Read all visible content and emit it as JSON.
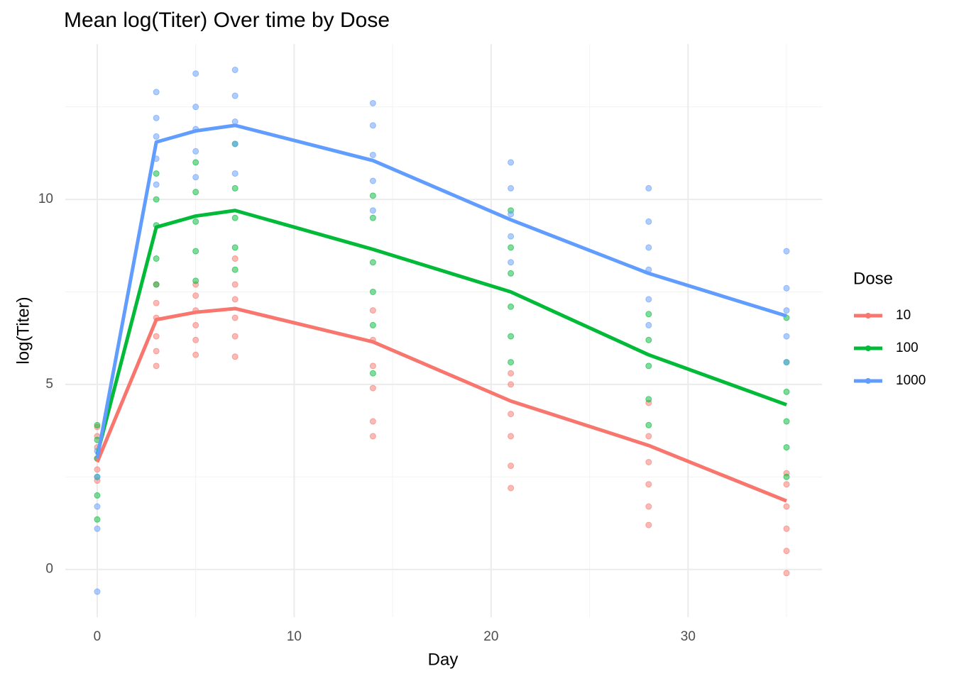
{
  "chart_data": {
    "type": "line",
    "title": "Mean log(Titer) Over time by Dose",
    "x_label": "Day",
    "y_label": "log(Titer)",
    "legend_title": "Dose",
    "legend_position": "right",
    "grid": true,
    "xlim": [
      -1.62,
      36.8
    ],
    "ylim": [
      -1.29,
      14.2
    ],
    "xticks": [
      0,
      10,
      20,
      30
    ],
    "yticks": [
      0,
      5,
      10
    ],
    "xminor": [
      5,
      15,
      25,
      35
    ],
    "yminor": [
      2.5,
      7.5,
      12.5
    ],
    "x": [
      0,
      3,
      5,
      7,
      14,
      21,
      28,
      35
    ],
    "series": [
      {
        "name": "10",
        "color": "#F8766D",
        "values": [
          2.9,
          6.75,
          6.95,
          7.05,
          6.15,
          4.55,
          3.35,
          1.85
        ],
        "points_x": [
          0,
          0,
          0,
          0,
          0,
          0,
          3,
          3,
          3,
          3,
          3,
          3,
          5,
          5,
          5,
          5,
          5,
          5,
          7,
          7,
          7,
          7,
          7,
          7,
          14,
          14,
          14,
          14,
          14,
          14,
          21,
          21,
          21,
          21,
          21,
          21,
          28,
          28,
          28,
          28,
          28,
          28,
          35,
          35,
          35,
          35,
          35,
          35
        ],
        "points_y": [
          2.4,
          2.7,
          3.0,
          3.3,
          3.6,
          3.85,
          5.5,
          5.9,
          6.3,
          6.8,
          7.2,
          7.7,
          5.8,
          6.2,
          6.6,
          7.0,
          7.4,
          7.7,
          5.75,
          6.3,
          6.8,
          7.3,
          7.7,
          8.4,
          3.6,
          4.0,
          4.9,
          5.5,
          6.2,
          7.0,
          2.2,
          2.8,
          3.6,
          4.2,
          5.0,
          5.3,
          1.2,
          1.7,
          2.3,
          2.9,
          3.6,
          4.5,
          -0.1,
          0.5,
          1.1,
          1.7,
          2.3,
          2.6
        ]
      },
      {
        "name": "100",
        "color": "#00BA38",
        "values": [
          3.1,
          9.25,
          9.55,
          9.7,
          8.65,
          7.5,
          5.8,
          4.45
        ],
        "points_x": [
          0,
          0,
          0,
          0,
          0,
          0,
          3,
          3,
          3,
          3,
          3,
          5,
          5,
          5,
          5,
          5,
          7,
          7,
          7,
          7,
          7,
          14,
          14,
          14,
          14,
          14,
          14,
          21,
          21,
          21,
          21,
          21,
          21,
          28,
          28,
          28,
          28,
          28,
          35,
          35,
          35,
          35,
          35,
          35
        ],
        "points_y": [
          1.35,
          2.0,
          2.5,
          3.0,
          3.5,
          3.9,
          7.7,
          8.4,
          9.3,
          10.0,
          10.7,
          7.8,
          8.6,
          9.4,
          10.2,
          11.0,
          8.1,
          8.7,
          9.5,
          10.3,
          11.5,
          5.3,
          6.6,
          7.5,
          8.3,
          9.5,
          10.1,
          5.6,
          6.3,
          7.1,
          8.0,
          8.7,
          9.7,
          3.9,
          4.6,
          5.5,
          6.2,
          6.9,
          2.5,
          3.3,
          4.0,
          4.8,
          5.6,
          6.8
        ]
      },
      {
        "name": "1000",
        "color": "#619CFF",
        "values": [
          3.0,
          11.55,
          11.85,
          12.0,
          11.05,
          9.45,
          8.0,
          6.85
        ],
        "points_x": [
          0,
          0,
          0,
          0,
          0,
          3,
          3,
          3,
          3,
          3,
          5,
          5,
          5,
          5,
          5,
          7,
          7,
          7,
          7,
          7,
          14,
          14,
          14,
          14,
          14,
          21,
          21,
          21,
          21,
          21,
          28,
          28,
          28,
          28,
          28,
          28,
          35,
          35,
          35,
          35,
          35
        ],
        "points_y": [
          -0.6,
          1.1,
          1.7,
          2.5,
          3.2,
          10.4,
          11.1,
          11.7,
          12.2,
          12.9,
          10.6,
          11.3,
          11.9,
          12.5,
          13.4,
          10.7,
          11.5,
          12.1,
          12.8,
          13.5,
          9.7,
          10.5,
          11.2,
          12.0,
          12.6,
          8.3,
          9.0,
          9.6,
          10.3,
          11.0,
          6.6,
          7.3,
          8.1,
          8.7,
          9.4,
          10.3,
          5.6,
          6.3,
          7.0,
          7.6,
          8.6
        ]
      }
    ]
  }
}
